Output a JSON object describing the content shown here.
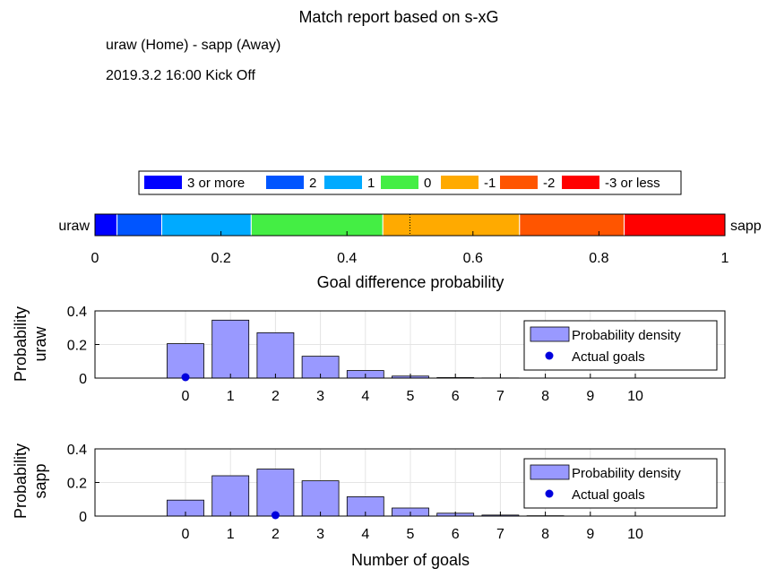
{
  "report": {
    "title": "Match report based on s-xG",
    "match": "uraw (Home) - sapp (Away)",
    "kickoff": "2019.3.2 16:00 Kick Off"
  },
  "chart_data": [
    {
      "type": "bar",
      "orientation": "horizontal-stacked",
      "xlabel": "Goal difference probability",
      "xlim": [
        0,
        1
      ],
      "xticks": [
        "0",
        "0.2",
        "0.4",
        "0.6",
        "0.8",
        "1"
      ],
      "left_label": "uraw",
      "right_label": "sapp",
      "marker_at": 0.5,
      "legend": {
        "placement": "top",
        "entries": [
          "3 or more",
          "2",
          "1",
          "0",
          "-1",
          "-2",
          "-3 or less"
        ]
      },
      "segments": [
        {
          "name": "3 or more",
          "value": 0.035,
          "color": "#0000ff"
        },
        {
          "name": "2",
          "value": 0.071,
          "color": "#0055ff"
        },
        {
          "name": "1",
          "value": 0.142,
          "color": "#00aaff"
        },
        {
          "name": "0",
          "value": 0.209,
          "color": "#44ee44"
        },
        {
          "name": "-1",
          "value": 0.217,
          "color": "#ffaa00"
        },
        {
          "name": "-2",
          "value": 0.166,
          "color": "#ff5500"
        },
        {
          "name": "-3 or less",
          "value": 0.16,
          "color": "#ff0000"
        }
      ]
    },
    {
      "type": "bar",
      "ylabel": [
        "Probability",
        "uraw"
      ],
      "categories": [
        "0",
        "1",
        "2",
        "3",
        "4",
        "5",
        "6",
        "7",
        "8",
        "9",
        "10"
      ],
      "ylim": [
        0,
        0.4
      ],
      "yticks": [
        "0",
        "0.2",
        "0.4"
      ],
      "grid": true,
      "legend": {
        "placement": "right",
        "entries": [
          "Probability density",
          "Actual goals"
        ]
      },
      "series": [
        {
          "name": "Probability density",
          "values": [
            0.205,
            0.345,
            0.27,
            0.13,
            0.045,
            0.012,
            0.003,
            0.001,
            0,
            0,
            0
          ],
          "color": "#9999ff"
        }
      ],
      "actual_goals": 0,
      "marker_color": "#0000dd"
    },
    {
      "type": "bar",
      "ylabel": [
        "Probability",
        "sapp"
      ],
      "xlabel": "Number of goals",
      "categories": [
        "0",
        "1",
        "2",
        "3",
        "4",
        "5",
        "6",
        "7",
        "8",
        "9",
        "10"
      ],
      "ylim": [
        0,
        0.4
      ],
      "yticks": [
        "0",
        "0.2",
        "0.4"
      ],
      "grid": true,
      "legend": {
        "placement": "right",
        "entries": [
          "Probability density",
          "Actual goals"
        ]
      },
      "series": [
        {
          "name": "Probability density",
          "values": [
            0.095,
            0.24,
            0.28,
            0.21,
            0.115,
            0.048,
            0.017,
            0.006,
            0.002,
            0.0005,
            0
          ],
          "color": "#9999ff"
        }
      ],
      "actual_goals": 2,
      "marker_color": "#0000dd"
    }
  ]
}
